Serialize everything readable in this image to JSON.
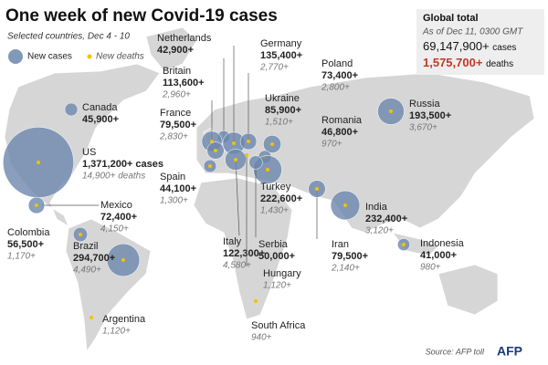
{
  "header": {
    "title": "One week of new Covid-19 cases",
    "subtitle": "Selected countries, Dec 4 - 10",
    "legend_cases": "New cases",
    "legend_deaths": "New deaths"
  },
  "global_total": {
    "title": "Global total",
    "as_of": "As of Dec 11, 0300 GMT",
    "cases": "69,147,900+",
    "cases_unit": "cases",
    "deaths": "1,575,700+",
    "deaths_unit": "deaths"
  },
  "countries": [
    {
      "name": "Canada",
      "cases": 45900,
      "cases_label": "45,900+"
    },
    {
      "name": "US",
      "cases": 1371200,
      "cases_label": "1,371,200+ cases",
      "deaths": 14900,
      "deaths_label": "14,900+ deaths"
    },
    {
      "name": "Mexico",
      "cases": 72400,
      "cases_label": "72,400+",
      "deaths": 4150,
      "deaths_label": "4,150+"
    },
    {
      "name": "Colombia",
      "cases": 56500,
      "cases_label": "56,500+",
      "deaths": 1170,
      "deaths_label": "1,170+"
    },
    {
      "name": "Brazil",
      "cases": 294700,
      "cases_label": "294,700+",
      "deaths": 4490,
      "deaths_label": "4,490+"
    },
    {
      "name": "Argentina",
      "deaths": 1120,
      "deaths_label": "1,120+"
    },
    {
      "name": "Netherlands",
      "cases": 42900,
      "cases_label": "42,900+"
    },
    {
      "name": "Britain",
      "cases": 113600,
      "cases_label": "113,600+",
      "deaths": 2960,
      "deaths_label": "2,960+"
    },
    {
      "name": "France",
      "cases": 79500,
      "cases_label": "79,500+",
      "deaths": 2830,
      "deaths_label": "2,830+"
    },
    {
      "name": "Spain",
      "cases": 44100,
      "cases_label": "44,100+",
      "deaths": 1300,
      "deaths_label": "1,300+"
    },
    {
      "name": "Germany",
      "cases": 135400,
      "cases_label": "135,400+",
      "deaths": 2770,
      "deaths_label": "2,770+"
    },
    {
      "name": "Poland",
      "cases": 73400,
      "cases_label": "73,400+",
      "deaths": 2800,
      "deaths_label": "2,800+"
    },
    {
      "name": "Ukraine",
      "cases": 85900,
      "cases_label": "85,900+",
      "deaths": 1510,
      "deaths_label": "1,510+"
    },
    {
      "name": "Romania",
      "cases": 46800,
      "cases_label": "46,800+",
      "deaths": 970,
      "deaths_label": "970+"
    },
    {
      "name": "Russia",
      "cases": 193500,
      "cases_label": "193,500+",
      "deaths": 3670,
      "deaths_label": "3,670+"
    },
    {
      "name": "Turkey",
      "cases": 222600,
      "cases_label": "222,600+",
      "deaths": 1430,
      "deaths_label": "1,430+"
    },
    {
      "name": "Italy",
      "cases": 122300,
      "cases_label": "122,300+",
      "deaths": 4580,
      "deaths_label": "4,580+"
    },
    {
      "name": "Serbia",
      "cases": 50000,
      "cases_label": "50,000+"
    },
    {
      "name": "Hungary",
      "deaths": 1120,
      "deaths_label": "1,120+"
    },
    {
      "name": "Iran",
      "cases": 79500,
      "cases_label": "79,500+",
      "deaths": 2140,
      "deaths_label": "2,140+"
    },
    {
      "name": "India",
      "cases": 232400,
      "cases_label": "232,400+",
      "deaths": 3120,
      "deaths_label": "3,120+"
    },
    {
      "name": "Indonesia",
      "cases": 41000,
      "cases_label": "41,000+",
      "deaths": 980,
      "deaths_label": "980+"
    },
    {
      "name": "South Africa",
      "deaths": 940,
      "deaths_label": "940+"
    }
  ],
  "footer": {
    "source": "Source: AFP toll",
    "logo": "AFP"
  }
}
